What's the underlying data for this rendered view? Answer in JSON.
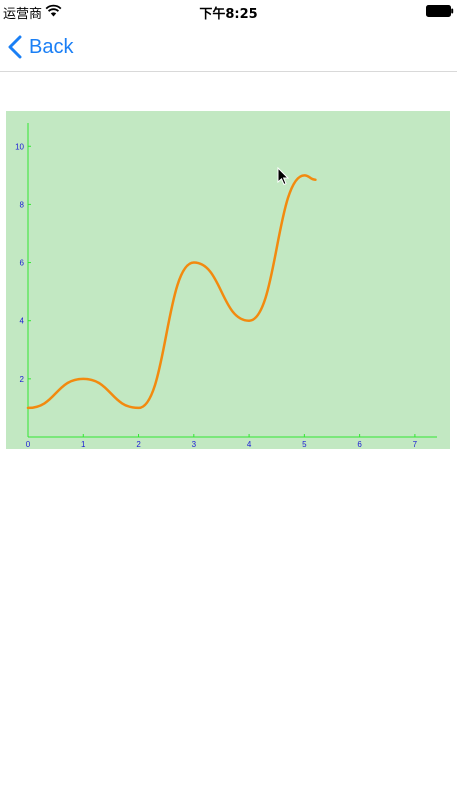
{
  "status_bar": {
    "carrier": "运营商",
    "time": "下午8:25",
    "wifi_icon": "wifi-icon",
    "battery_icon": "battery-icon"
  },
  "nav": {
    "back_label": "Back",
    "back_icon": "chevron-left-icon",
    "accent_color": "#1a7ff5"
  },
  "chart_data": {
    "type": "line",
    "background_color": "#c2e8c2",
    "axis_color": "#33e633",
    "tick_color": "#1a1ad6",
    "line_color": "#f28a0f",
    "xlim": [
      0,
      7.4
    ],
    "ylim": [
      0,
      10.8
    ],
    "x_ticks": [
      0,
      1,
      2,
      3,
      4,
      5,
      6,
      7
    ],
    "y_ticks": [
      2,
      4,
      6,
      8,
      10
    ],
    "grid": false,
    "series": [
      {
        "points": [
          [
            0,
            1
          ],
          [
            1,
            2
          ],
          [
            2,
            1
          ],
          [
            3,
            6
          ],
          [
            4,
            4
          ],
          [
            5,
            9
          ],
          [
            5.2,
            8.85
          ]
        ]
      }
    ]
  }
}
